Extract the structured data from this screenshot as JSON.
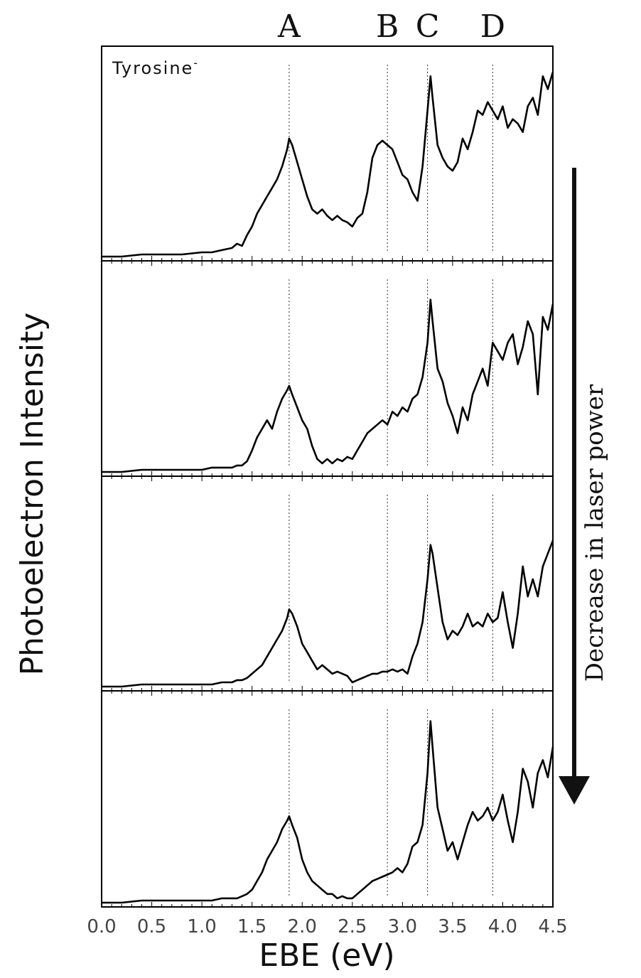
{
  "chart_data": {
    "type": "line",
    "panel_title": "Tyrosine",
    "panel_title_superscript": "-",
    "xlabel": "EBE (eV)",
    "ylabel": "Photoelectron Intensity",
    "xlim": [
      0.0,
      4.5
    ],
    "xticks": [
      "0.0",
      "0.5",
      "1.0",
      "1.5",
      "2.0",
      "2.5",
      "3.0",
      "3.5",
      "4.0",
      "4.5"
    ],
    "peak_markers": [
      {
        "label": "A",
        "ebe": 1.87
      },
      {
        "label": "B",
        "ebe": 2.85
      },
      {
        "label": "C",
        "ebe": 3.25
      },
      {
        "label": "D",
        "ebe": 3.9
      }
    ],
    "annotation": "Decrease in laser power",
    "stacked_panels": 4,
    "series": [
      {
        "x": [
          0.0,
          0.2,
          0.4,
          0.6,
          0.8,
          1.0,
          1.1,
          1.2,
          1.3,
          1.35,
          1.4,
          1.45,
          1.5,
          1.55,
          1.6,
          1.65,
          1.7,
          1.75,
          1.8,
          1.85,
          1.87,
          1.9,
          1.95,
          2.0,
          2.05,
          2.1,
          2.15,
          2.2,
          2.25,
          2.3,
          2.35,
          2.4,
          2.45,
          2.5,
          2.55,
          2.6,
          2.65,
          2.7,
          2.75,
          2.8,
          2.85,
          2.9,
          2.95,
          3.0,
          3.05,
          3.1,
          3.15,
          3.2,
          3.25,
          3.28,
          3.3,
          3.35,
          3.4,
          3.45,
          3.5,
          3.55,
          3.6,
          3.65,
          3.7,
          3.75,
          3.8,
          3.85,
          3.9,
          3.95,
          4.0,
          4.05,
          4.1,
          4.15,
          4.2,
          4.25,
          4.3,
          4.35,
          4.4,
          4.45,
          4.5
        ],
        "y": [
          0.0,
          0.0,
          0.01,
          0.01,
          0.01,
          0.02,
          0.02,
          0.03,
          0.04,
          0.06,
          0.05,
          0.1,
          0.14,
          0.2,
          0.24,
          0.28,
          0.32,
          0.36,
          0.42,
          0.5,
          0.55,
          0.52,
          0.44,
          0.36,
          0.28,
          0.22,
          0.2,
          0.22,
          0.19,
          0.17,
          0.19,
          0.17,
          0.16,
          0.14,
          0.18,
          0.2,
          0.3,
          0.46,
          0.52,
          0.54,
          0.52,
          0.5,
          0.44,
          0.38,
          0.36,
          0.3,
          0.26,
          0.42,
          0.68,
          0.84,
          0.74,
          0.52,
          0.46,
          0.42,
          0.4,
          0.44,
          0.55,
          0.5,
          0.58,
          0.68,
          0.66,
          0.72,
          0.68,
          0.64,
          0.7,
          0.6,
          0.64,
          0.62,
          0.58,
          0.7,
          0.74,
          0.66,
          0.84,
          0.78,
          0.86
        ]
      },
      {
        "x": [
          0.0,
          0.2,
          0.4,
          0.6,
          0.8,
          1.0,
          1.1,
          1.2,
          1.3,
          1.35,
          1.4,
          1.45,
          1.5,
          1.55,
          1.6,
          1.65,
          1.7,
          1.75,
          1.8,
          1.85,
          1.87,
          1.9,
          1.95,
          2.0,
          2.05,
          2.1,
          2.15,
          2.2,
          2.25,
          2.3,
          2.35,
          2.4,
          2.45,
          2.5,
          2.55,
          2.6,
          2.65,
          2.7,
          2.75,
          2.8,
          2.85,
          2.9,
          2.95,
          3.0,
          3.05,
          3.1,
          3.15,
          3.2,
          3.25,
          3.28,
          3.3,
          3.35,
          3.4,
          3.45,
          3.5,
          3.55,
          3.6,
          3.65,
          3.7,
          3.75,
          3.8,
          3.85,
          3.9,
          3.95,
          4.0,
          4.05,
          4.1,
          4.15,
          4.2,
          4.25,
          4.3,
          4.35,
          4.4,
          4.45,
          4.5
        ],
        "y": [
          0.0,
          0.0,
          0.01,
          0.01,
          0.01,
          0.01,
          0.02,
          0.02,
          0.02,
          0.03,
          0.03,
          0.05,
          0.1,
          0.16,
          0.2,
          0.24,
          0.2,
          0.28,
          0.34,
          0.38,
          0.4,
          0.36,
          0.3,
          0.24,
          0.2,
          0.12,
          0.06,
          0.04,
          0.06,
          0.04,
          0.06,
          0.05,
          0.07,
          0.06,
          0.1,
          0.14,
          0.18,
          0.2,
          0.22,
          0.24,
          0.22,
          0.28,
          0.26,
          0.3,
          0.28,
          0.34,
          0.36,
          0.44,
          0.6,
          0.8,
          0.7,
          0.48,
          0.42,
          0.32,
          0.26,
          0.18,
          0.3,
          0.24,
          0.36,
          0.42,
          0.48,
          0.4,
          0.6,
          0.56,
          0.52,
          0.6,
          0.64,
          0.5,
          0.58,
          0.7,
          0.64,
          0.36,
          0.72,
          0.66,
          0.78
        ]
      },
      {
        "x": [
          0.0,
          0.2,
          0.4,
          0.6,
          0.8,
          1.0,
          1.1,
          1.2,
          1.3,
          1.35,
          1.4,
          1.45,
          1.5,
          1.55,
          1.6,
          1.65,
          1.7,
          1.75,
          1.8,
          1.85,
          1.87,
          1.9,
          1.95,
          2.0,
          2.05,
          2.1,
          2.15,
          2.2,
          2.25,
          2.3,
          2.35,
          2.4,
          2.45,
          2.5,
          2.55,
          2.6,
          2.65,
          2.7,
          2.75,
          2.8,
          2.85,
          2.9,
          2.95,
          3.0,
          3.05,
          3.1,
          3.15,
          3.2,
          3.25,
          3.28,
          3.3,
          3.35,
          3.4,
          3.45,
          3.5,
          3.55,
          3.6,
          3.65,
          3.7,
          3.75,
          3.8,
          3.85,
          3.9,
          3.95,
          4.0,
          4.05,
          4.1,
          4.15,
          4.2,
          4.25,
          4.3,
          4.35,
          4.4,
          4.45,
          4.5
        ],
        "y": [
          0.0,
          0.0,
          0.01,
          0.01,
          0.01,
          0.01,
          0.01,
          0.02,
          0.02,
          0.03,
          0.03,
          0.04,
          0.06,
          0.08,
          0.1,
          0.14,
          0.18,
          0.22,
          0.26,
          0.32,
          0.36,
          0.34,
          0.28,
          0.2,
          0.16,
          0.12,
          0.08,
          0.1,
          0.08,
          0.06,
          0.07,
          0.06,
          0.05,
          0.02,
          0.03,
          0.04,
          0.05,
          0.06,
          0.06,
          0.07,
          0.07,
          0.08,
          0.07,
          0.08,
          0.06,
          0.14,
          0.2,
          0.3,
          0.5,
          0.66,
          0.62,
          0.46,
          0.3,
          0.22,
          0.26,
          0.24,
          0.28,
          0.34,
          0.28,
          0.3,
          0.28,
          0.34,
          0.3,
          0.32,
          0.44,
          0.3,
          0.18,
          0.34,
          0.56,
          0.42,
          0.5,
          0.42,
          0.56,
          0.62,
          0.68
        ]
      },
      {
        "x": [
          0.0,
          0.2,
          0.4,
          0.6,
          0.8,
          1.0,
          1.1,
          1.2,
          1.3,
          1.35,
          1.4,
          1.45,
          1.5,
          1.55,
          1.6,
          1.65,
          1.7,
          1.75,
          1.8,
          1.85,
          1.87,
          1.9,
          1.95,
          2.0,
          2.05,
          2.1,
          2.15,
          2.2,
          2.25,
          2.3,
          2.35,
          2.4,
          2.45,
          2.5,
          2.55,
          2.6,
          2.65,
          2.7,
          2.75,
          2.8,
          2.85,
          2.9,
          2.95,
          3.0,
          3.05,
          3.1,
          3.15,
          3.2,
          3.25,
          3.28,
          3.3,
          3.35,
          3.4,
          3.45,
          3.5,
          3.55,
          3.6,
          3.65,
          3.7,
          3.75,
          3.8,
          3.85,
          3.9,
          3.95,
          4.0,
          4.05,
          4.1,
          4.15,
          4.2,
          4.25,
          4.3,
          4.35,
          4.4,
          4.45,
          4.5
        ],
        "y": [
          0.0,
          0.0,
          0.01,
          0.01,
          0.01,
          0.01,
          0.01,
          0.02,
          0.02,
          0.02,
          0.03,
          0.04,
          0.06,
          0.1,
          0.14,
          0.2,
          0.24,
          0.28,
          0.34,
          0.38,
          0.4,
          0.36,
          0.3,
          0.2,
          0.14,
          0.1,
          0.08,
          0.06,
          0.04,
          0.04,
          0.02,
          0.03,
          0.02,
          0.02,
          0.04,
          0.06,
          0.08,
          0.1,
          0.11,
          0.12,
          0.13,
          0.14,
          0.16,
          0.14,
          0.18,
          0.26,
          0.28,
          0.36,
          0.6,
          0.84,
          0.72,
          0.44,
          0.34,
          0.24,
          0.28,
          0.2,
          0.28,
          0.36,
          0.42,
          0.38,
          0.4,
          0.44,
          0.38,
          0.42,
          0.5,
          0.38,
          0.28,
          0.42,
          0.62,
          0.56,
          0.44,
          0.6,
          0.66,
          0.58,
          0.72
        ]
      }
    ]
  }
}
